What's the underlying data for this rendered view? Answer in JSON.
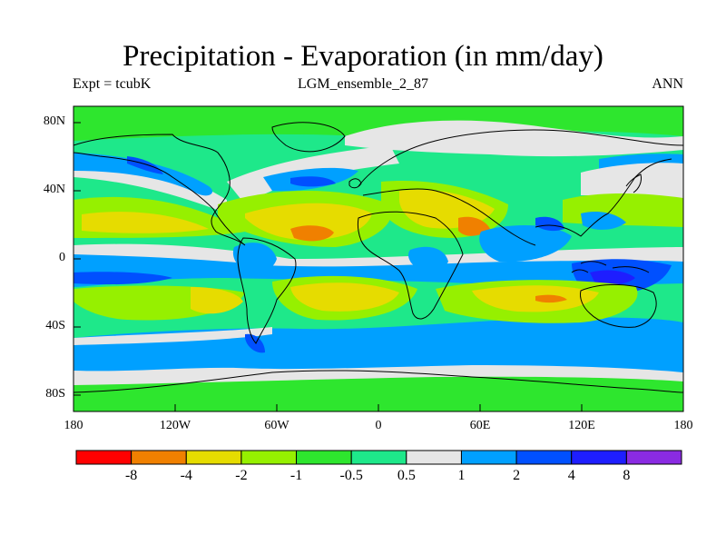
{
  "title": "Precipitation - Evaporation (in mm/day)",
  "subtitle_left": "Expt = tcubK",
  "subtitle_center": "LGM_ensemble_2_87",
  "subtitle_right": "ANN",
  "y_ticks": [
    "80N",
    "40N",
    "0",
    "40S",
    "80S"
  ],
  "x_ticks": [
    "180",
    "120W",
    "60W",
    "0",
    "60E",
    "120E",
    "180"
  ],
  "colorbar": {
    "colors": [
      "#ff0000",
      "#f08000",
      "#e6dc00",
      "#96f000",
      "#2ee62e",
      "#1ee88a",
      "#e6e6e6",
      "#00a0ff",
      "#0050ff",
      "#1e1eff",
      "#8a2be2"
    ],
    "labels": [
      "-8",
      "-4",
      "-2",
      "-1",
      "-0.5",
      "0.5",
      "1",
      "2",
      "4",
      "8"
    ]
  },
  "map_colors": {
    "background": "#1ee88a",
    "wet_light": "#e6e6e6",
    "wet_medium": "#00a0ff",
    "wet_heavy": "#0050ff",
    "wet_extreme": "#1e1eff",
    "dry_light": "#2ee62e",
    "dry_medium": "#96f000",
    "dry_heavy": "#e6dc00",
    "dry_extreme": "#f08000",
    "coast": "#000000"
  }
}
